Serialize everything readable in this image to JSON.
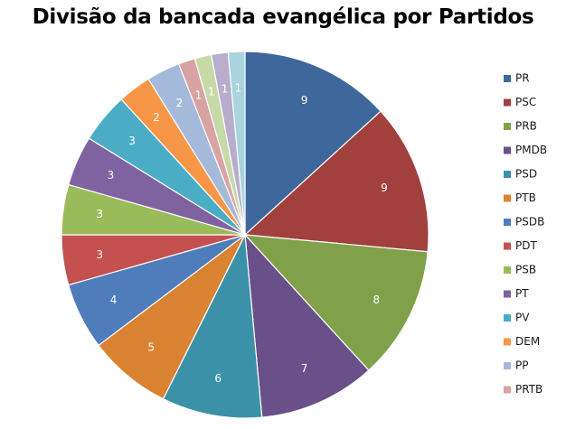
{
  "chart_data": {
    "type": "pie",
    "title": "Divisão da bancada evangélica por Partidos",
    "categories": [
      "PR",
      "PSC",
      "PRB",
      "PMDB",
      "PSD",
      "PTB",
      "PSDB",
      "PDT",
      "PSB",
      "PT",
      "PV",
      "DEM",
      "PP",
      "PRTB",
      "",
      "",
      ""
    ],
    "values": [
      9,
      9,
      8,
      7,
      6,
      5,
      4,
      3,
      3,
      3,
      3,
      2,
      2,
      1,
      1,
      1,
      1
    ],
    "colors": [
      "#3E679C",
      "#A2403D",
      "#80A04A",
      "#6A5088",
      "#3B92A8",
      "#D98231",
      "#4F7CBA",
      "#C4504F",
      "#9ABB59",
      "#7F63A1",
      "#4BACC6",
      "#F79646",
      "#A5B9DA",
      "#D8A3A3",
      "#C8D9A8",
      "#B8ADCD",
      "#A9D3DE"
    ],
    "legend": {
      "placement": "right",
      "entries": [
        "PR",
        "PSC",
        "PRB",
        "PMDB",
        "PSD",
        "PTB",
        "PSDB",
        "PDT",
        "PSB",
        "PT",
        "PV",
        "DEM",
        "PP",
        "PRTB"
      ]
    },
    "data_labels": true
  }
}
